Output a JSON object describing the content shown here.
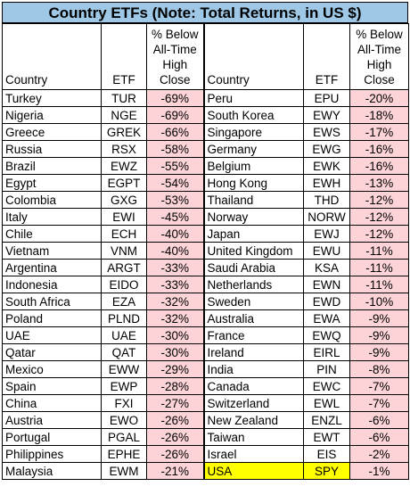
{
  "title": "Country ETFs (Note: Total Returns, in US $)",
  "headers": {
    "country": "Country",
    "etf": "ETF",
    "pct_line1": "% Below",
    "pct_line2": "All-Time",
    "pct_line3": "High",
    "pct_line4": "Close"
  },
  "colors": {
    "title_bg": "#9ec8e6",
    "pct_bg": "#fcd4d8",
    "highlight_bg": "#ffff00"
  },
  "left_rows": [
    {
      "country": "Turkey",
      "etf": "TUR",
      "pct": "-69%"
    },
    {
      "country": "Nigeria",
      "etf": "NGE",
      "pct": "-69%"
    },
    {
      "country": "Greece",
      "etf": "GREK",
      "pct": "-66%"
    },
    {
      "country": "Russia",
      "etf": "RSX",
      "pct": "-58%"
    },
    {
      "country": "Brazil",
      "etf": "EWZ",
      "pct": "-55%"
    },
    {
      "country": "Egypt",
      "etf": "EGPT",
      "pct": "-54%"
    },
    {
      "country": "Colombia",
      "etf": "GXG",
      "pct": "-53%"
    },
    {
      "country": "Italy",
      "etf": "EWI",
      "pct": "-45%"
    },
    {
      "country": "Chile",
      "etf": "ECH",
      "pct": "-40%"
    },
    {
      "country": "Vietnam",
      "etf": "VNM",
      "pct": "-40%"
    },
    {
      "country": "Argentina",
      "etf": "ARGT",
      "pct": "-33%"
    },
    {
      "country": "Indonesia",
      "etf": "EIDO",
      "pct": "-33%"
    },
    {
      "country": "South Africa",
      "etf": "EZA",
      "pct": "-32%"
    },
    {
      "country": "Poland",
      "etf": "PLND",
      "pct": "-32%"
    },
    {
      "country": "UAE",
      "etf": "UAE",
      "pct": "-30%"
    },
    {
      "country": "Qatar",
      "etf": "QAT",
      "pct": "-30%"
    },
    {
      "country": "Mexico",
      "etf": "EWW",
      "pct": "-29%"
    },
    {
      "country": "Spain",
      "etf": "EWP",
      "pct": "-28%"
    },
    {
      "country": "China",
      "etf": "FXI",
      "pct": "-27%"
    },
    {
      "country": "Austria",
      "etf": "EWO",
      "pct": "-26%"
    },
    {
      "country": "Portugal",
      "etf": "PGAL",
      "pct": "-26%"
    },
    {
      "country": "Philippines",
      "etf": "EPHE",
      "pct": "-26%"
    },
    {
      "country": "Malaysia",
      "etf": "EWM",
      "pct": "-21%"
    }
  ],
  "right_rows": [
    {
      "country": "Peru",
      "etf": "EPU",
      "pct": "-20%"
    },
    {
      "country": "South Korea",
      "etf": "EWY",
      "pct": "-18%"
    },
    {
      "country": "Singapore",
      "etf": "EWS",
      "pct": "-17%"
    },
    {
      "country": "Germany",
      "etf": "EWG",
      "pct": "-16%"
    },
    {
      "country": "Belgium",
      "etf": "EWK",
      "pct": "-16%"
    },
    {
      "country": "Hong Kong",
      "etf": "EWH",
      "pct": "-13%"
    },
    {
      "country": "Thailand",
      "etf": "THD",
      "pct": "-12%"
    },
    {
      "country": "Norway",
      "etf": "NORW",
      "pct": "-12%"
    },
    {
      "country": "Japan",
      "etf": "EWJ",
      "pct": "-12%"
    },
    {
      "country": "United Kingdom",
      "etf": "EWU",
      "pct": "-11%"
    },
    {
      "country": "Saudi Arabia",
      "etf": "KSA",
      "pct": "-11%"
    },
    {
      "country": "Netherlands",
      "etf": "EWN",
      "pct": "-11%"
    },
    {
      "country": "Sweden",
      "etf": "EWD",
      "pct": "-10%"
    },
    {
      "country": "Australia",
      "etf": "EWA",
      "pct": "-9%"
    },
    {
      "country": "France",
      "etf": "EWQ",
      "pct": "-9%"
    },
    {
      "country": "Ireland",
      "etf": "EIRL",
      "pct": "-9%"
    },
    {
      "country": "India",
      "etf": "PIN",
      "pct": "-8%"
    },
    {
      "country": "Canada",
      "etf": "EWC",
      "pct": "-7%"
    },
    {
      "country": "Switzerland",
      "etf": "EWL",
      "pct": "-7%"
    },
    {
      "country": "New Zealand",
      "etf": "ENZL",
      "pct": "-6%"
    },
    {
      "country": "Taiwan",
      "etf": "EWT",
      "pct": "-6%"
    },
    {
      "country": "Israel",
      "etf": "EIS",
      "pct": "-2%"
    },
    {
      "country": "USA",
      "etf": "SPY",
      "pct": "-1%",
      "highlight": true
    }
  ]
}
